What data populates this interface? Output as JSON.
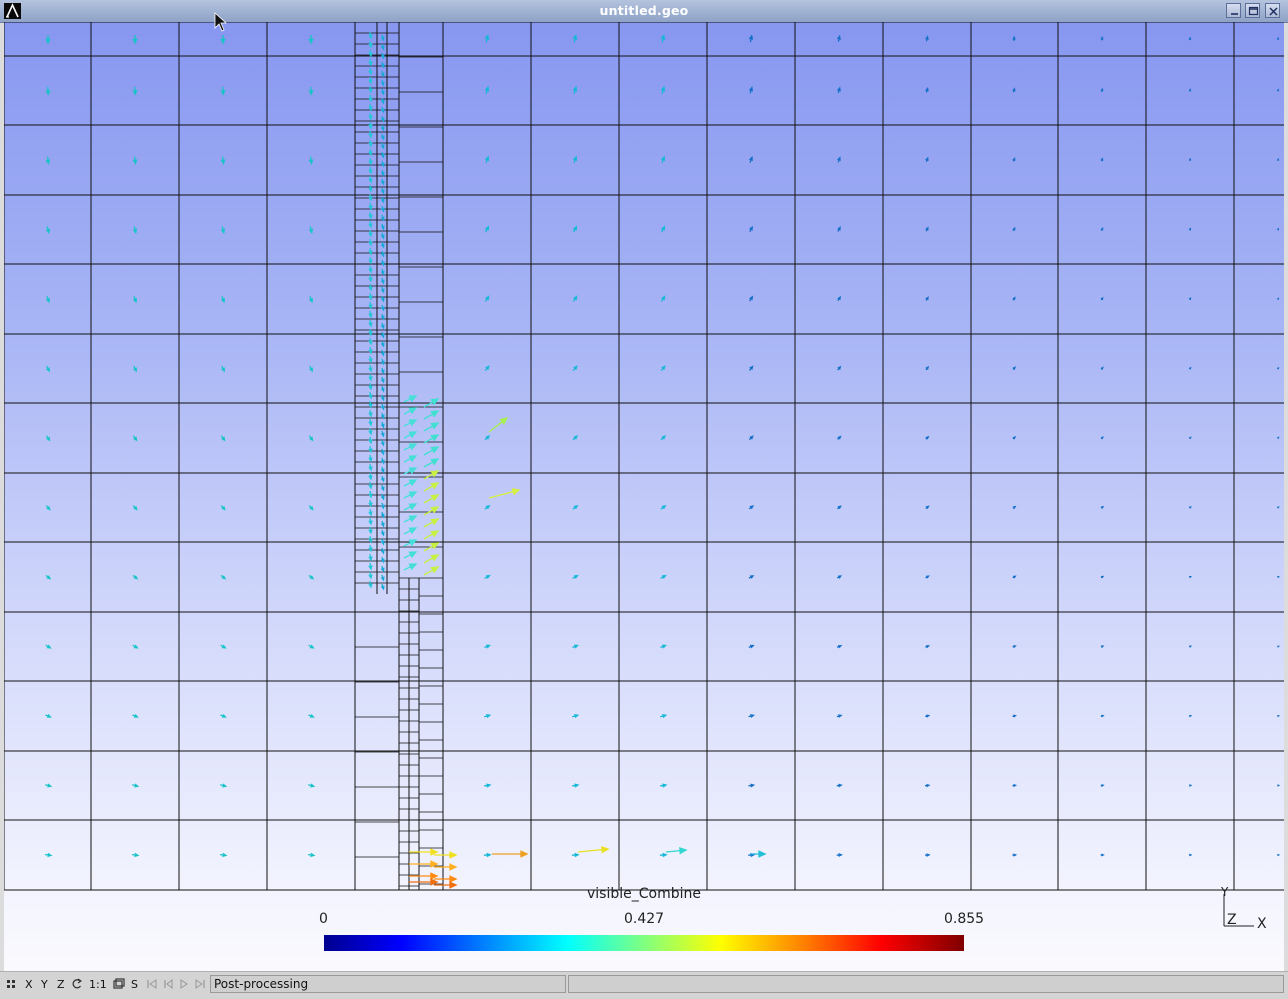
{
  "window": {
    "title": "untitled.geo",
    "logo_icon": "gmsh-logo-icon",
    "controls": [
      "minimize-icon",
      "maximize-icon",
      "close-icon"
    ]
  },
  "legend": {
    "title": "visible_Combine",
    "min_label": "0",
    "mid_label": "0.427",
    "max_label": "0.855",
    "colormap": [
      "#00008f",
      "#0000ff",
      "#0080ff",
      "#00ffff",
      "#80ff80",
      "#ffff00",
      "#ff8000",
      "#ff0000",
      "#800000"
    ]
  },
  "axes": {
    "y": "Y",
    "z": "Z",
    "x": "X"
  },
  "statusbar": {
    "buttons": {
      "x": "X",
      "y": "Y",
      "z": "Z",
      "one_to_one": "1:1",
      "s": "S"
    },
    "icons": [
      "grid-icon",
      "rotate-icon",
      "snapshot-icon",
      "first-step-icon",
      "prev-step-icon",
      "play-icon",
      "last-step-icon"
    ],
    "message": "Post-processing"
  },
  "colors": {
    "background_top": "#8797f0",
    "background_bottom": "#fafafe",
    "mesh_line": "#000000",
    "vector_low": "#00ffff",
    "vector_high": "#ff8000"
  }
}
